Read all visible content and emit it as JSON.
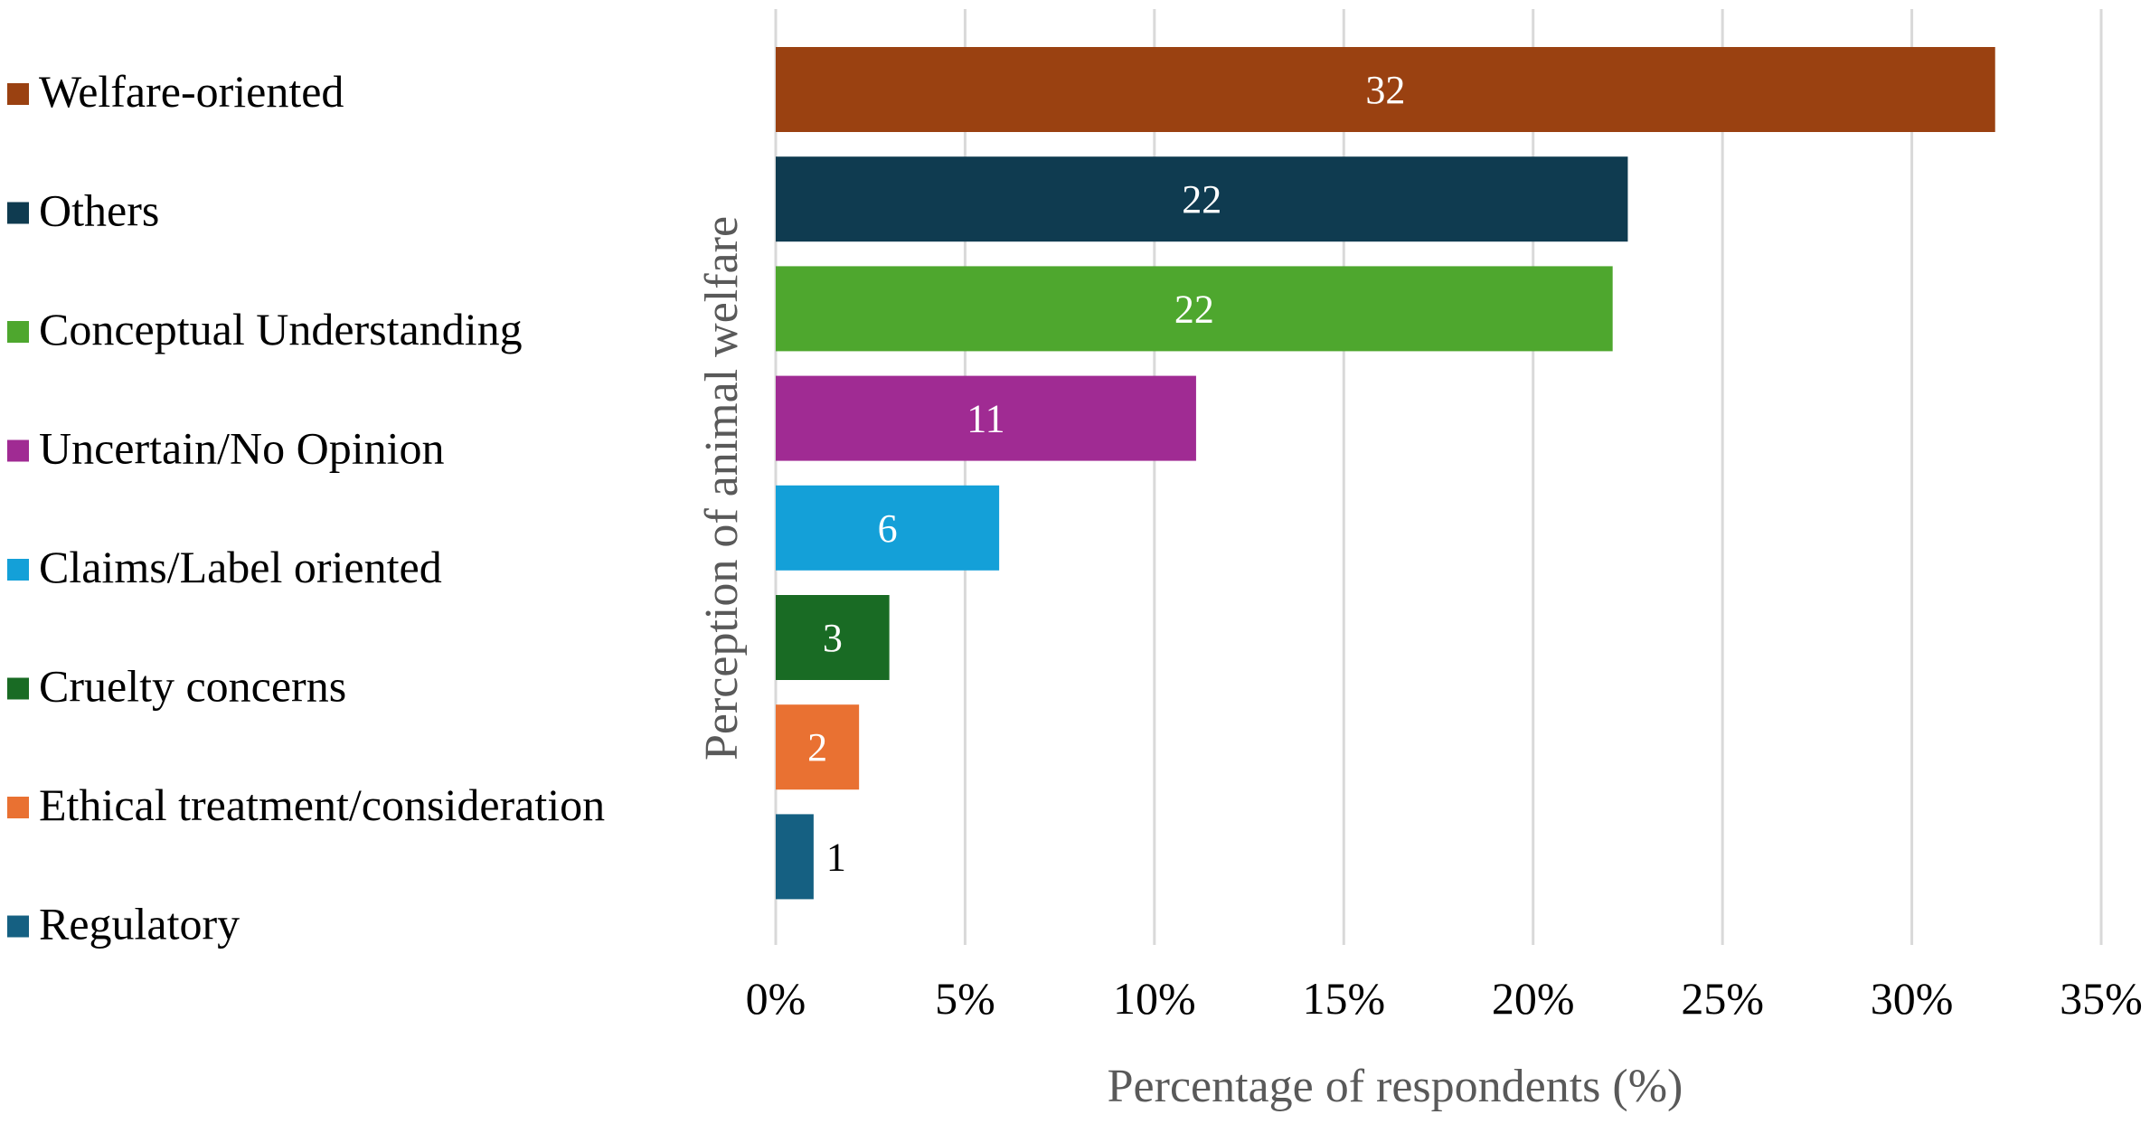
{
  "chart_data": {
    "type": "bar",
    "orientation": "horizontal",
    "title": "",
    "xlabel": "Percentage of respondents (%)",
    "ylabel": "Perception of animal welfare",
    "xlim": [
      0,
      35
    ],
    "x_ticks": [
      0,
      5,
      10,
      15,
      20,
      25,
      30,
      35
    ],
    "x_tick_labels": [
      "0%",
      "5%",
      "10%",
      "15%",
      "20%",
      "25%",
      "30%",
      "35%"
    ],
    "grid": "vertical",
    "legend_position": "left",
    "categories": [
      "Welfare-oriented",
      "Others",
      "Conceptual Understanding",
      "Uncertain/No Opinion",
      "Claims/Label oriented",
      "Cruelty concerns",
      "Ethical treatment/consideration",
      "Regulatory"
    ],
    "values": [
      32.2,
      22.5,
      22.1,
      11.1,
      5.9,
      3.0,
      2.2,
      1.0
    ],
    "data_labels": [
      "32",
      "22",
      "22",
      "11",
      "6",
      "3",
      "2",
      "1"
    ],
    "colors": [
      "#9A4111",
      "#0F3B50",
      "#4EA72E",
      "#A02B93",
      "#14A0D8",
      "#196B24",
      "#E97132",
      "#156082"
    ],
    "label_colors": [
      "#FFFFFF",
      "#FFFFFF",
      "#FFFFFF",
      "#FFFFFF",
      "#FFFFFF",
      "#FFFFFF",
      "#FFFFFF",
      "#000000"
    ],
    "label_placement": [
      "inside",
      "inside",
      "inside",
      "inside",
      "inside",
      "inside",
      "inside",
      "outside"
    ]
  }
}
